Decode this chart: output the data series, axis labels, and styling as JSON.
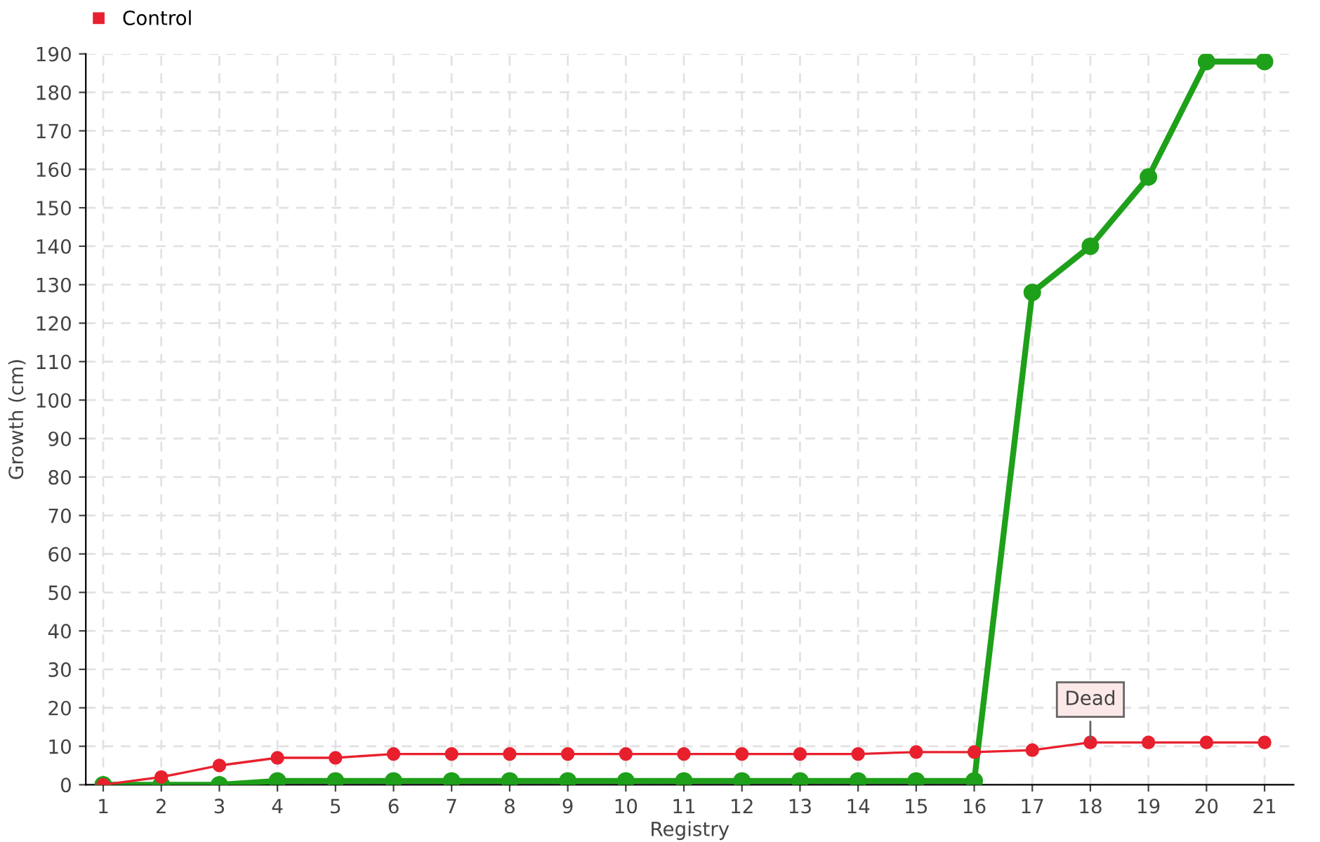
{
  "chart_data": {
    "type": "line",
    "xlabel": "Registry",
    "ylabel": "Growth (cm)",
    "categories": [
      "1",
      "2",
      "3",
      "4",
      "5",
      "6",
      "7",
      "8",
      "9",
      "10",
      "11",
      "12",
      "13",
      "14",
      "15",
      "16",
      "17",
      "18",
      "19",
      "20",
      "21"
    ],
    "series": [
      {
        "color": "#1fa01a",
        "values": [
          0,
          0,
          0,
          1,
          1,
          1,
          1,
          1,
          1,
          1,
          1,
          1,
          1,
          1,
          1,
          1,
          128,
          140,
          158,
          188,
          188
        ]
      },
      {
        "name": "Control",
        "color": "#e8202e",
        "values": [
          0,
          2,
          5,
          7,
          7,
          8,
          8,
          8,
          8,
          8,
          8,
          8,
          8,
          8,
          8.5,
          8.5,
          9,
          11,
          11,
          11,
          11
        ]
      }
    ],
    "ylim": [
      0,
      190
    ],
    "yticks": [
      0,
      10,
      20,
      30,
      40,
      50,
      60,
      70,
      80,
      90,
      100,
      110,
      120,
      130,
      140,
      150,
      160,
      170,
      180,
      190
    ],
    "grid": true,
    "legend": "top left",
    "marker": "circle",
    "line_style": "solid",
    "annotations": [
      {
        "text": "Dead",
        "x": "18",
        "y": 11
      }
    ]
  }
}
